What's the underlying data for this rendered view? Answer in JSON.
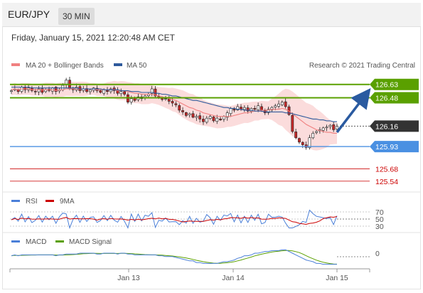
{
  "header": {
    "symbol": "EUR/JPY",
    "timeframe": "30 MIN",
    "datetime": "Friday, January 15, 2021 12:20:48 AM CET"
  },
  "legend": {
    "bollinger": "MA 20 + Bollinger Bands",
    "ma50": "MA 50",
    "credit": "Research © 2021 Trading Central"
  },
  "rsi_legend": {
    "rsi": "RSI",
    "ma9": "9MA"
  },
  "macd_legend": {
    "macd": "MACD",
    "signal": "MACD Signal"
  },
  "colors": {
    "bollinger": "#f08080",
    "ma50": "#2e5a9c",
    "green": "#5aa000",
    "blue": "#4a90e2",
    "red": "#cc0000",
    "dark": "#333333",
    "arrow": "#2a5aa0"
  },
  "chart_data": {
    "type": "candlestick",
    "y_range": [
      125.45,
      126.78
    ],
    "x_ticks": [
      "Jan 13",
      "Jan 14",
      "Jan 15"
    ],
    "levels": [
      {
        "value": 126.63,
        "label": "126.63",
        "kind": "resistance"
      },
      {
        "value": 126.48,
        "label": "126.48",
        "kind": "resistance"
      },
      {
        "value": 126.16,
        "label": "126.16",
        "kind": "current"
      },
      {
        "value": 125.93,
        "label": "125.93",
        "kind": "pivot"
      },
      {
        "value": 125.68,
        "label": "125.68",
        "kind": "support"
      },
      {
        "value": 125.54,
        "label": "125.54",
        "kind": "support"
      }
    ],
    "closes": [
      126.56,
      126.58,
      126.55,
      126.6,
      126.57,
      126.59,
      126.56,
      126.55,
      126.58,
      126.54,
      126.57,
      126.56,
      126.59,
      126.55,
      126.57,
      126.62,
      126.68,
      126.58,
      126.57,
      126.6,
      126.56,
      126.58,
      126.55,
      126.57,
      126.59,
      126.56,
      126.54,
      126.57,
      126.55,
      126.58,
      126.56,
      126.53,
      126.55,
      126.52,
      126.43,
      126.47,
      126.45,
      126.49,
      126.47,
      126.5,
      126.52,
      126.58,
      126.5,
      126.48,
      126.46,
      126.47,
      126.44,
      126.42,
      126.4,
      126.34,
      126.32,
      126.28,
      126.3,
      126.26,
      126.27,
      126.24,
      126.21,
      126.25,
      126.27,
      126.22,
      126.25,
      126.23,
      126.27,
      126.31,
      126.36,
      126.34,
      126.38,
      126.35,
      126.37,
      126.33,
      126.36,
      126.35,
      126.39,
      126.34,
      126.31,
      126.35,
      126.37,
      126.39,
      126.41,
      126.43,
      126.38,
      126.29,
      126.1,
      126.03,
      125.98,
      125.95,
      125.92,
      126.03,
      126.08,
      126.1,
      126.12,
      126.14,
      126.15,
      126.17,
      126.12,
      126.16
    ],
    "ma20": [
      126.57,
      126.58,
      126.57,
      126.58,
      126.58,
      126.58,
      126.57,
      126.57,
      126.57,
      126.57,
      126.57,
      126.57,
      126.57,
      126.56,
      126.57,
      126.57,
      126.58,
      126.58,
      126.58,
      126.58,
      126.58,
      126.58,
      126.58,
      126.58,
      126.58,
      126.57,
      126.57,
      126.57,
      126.57,
      126.57,
      126.57,
      126.56,
      126.56,
      126.56,
      126.55,
      126.54,
      126.53,
      126.53,
      126.52,
      126.52,
      126.52,
      126.52,
      126.51,
      126.5,
      126.49,
      126.48,
      126.47,
      126.46,
      126.45,
      126.43,
      126.41,
      126.39,
      126.37,
      126.36,
      126.34,
      126.33,
      126.31,
      126.3,
      126.29,
      126.28,
      126.27,
      126.27,
      126.27,
      126.27,
      126.27,
      126.28,
      126.29,
      126.3,
      126.31,
      126.31,
      126.32,
      126.33,
      126.33,
      126.34,
      126.34,
      126.34,
      126.35,
      126.35,
      126.35,
      126.36,
      126.35,
      126.33,
      126.3,
      126.27,
      126.24,
      126.21,
      126.18,
      126.16,
      126.14,
      126.12,
      126.11,
      126.1,
      126.09,
      126.09,
      126.08,
      126.08
    ],
    "ma50": [
      126.6,
      126.6,
      126.6,
      126.6,
      126.6,
      126.6,
      126.59,
      126.59,
      126.59,
      126.59,
      126.59,
      126.59,
      126.59,
      126.59,
      126.59,
      126.59,
      126.59,
      126.59,
      126.59,
      126.59,
      126.58,
      126.58,
      126.58,
      126.58,
      126.58,
      126.58,
      126.58,
      126.57,
      126.57,
      126.57,
      126.57,
      126.57,
      126.56,
      126.56,
      126.56,
      126.55,
      126.55,
      126.55,
      126.54,
      126.54,
      126.54,
      126.54,
      126.53,
      126.53,
      126.52,
      126.52,
      126.51,
      126.5,
      126.5,
      126.49,
      126.48,
      126.47,
      126.46,
      126.45,
      126.45,
      126.44,
      126.43,
      126.42,
      126.41,
      126.4,
      126.39,
      126.38,
      126.37,
      126.37,
      126.36,
      126.36,
      126.35,
      126.35,
      126.34,
      126.34,
      126.34,
      126.33,
      126.33,
      126.33,
      126.32,
      126.32,
      126.32,
      126.32,
      126.32,
      126.32,
      126.31,
      126.31,
      126.3,
      126.29,
      126.28,
      126.27,
      126.26,
      126.25,
      126.24,
      126.24,
      126.23,
      126.23,
      126.22,
      126.22,
      126.21,
      126.21
    ],
    "rsi": {
      "levels": [
        "70",
        "50",
        "30"
      ],
      "range": [
        0,
        100
      ]
    },
    "macd": {
      "zero_label": "0"
    }
  }
}
